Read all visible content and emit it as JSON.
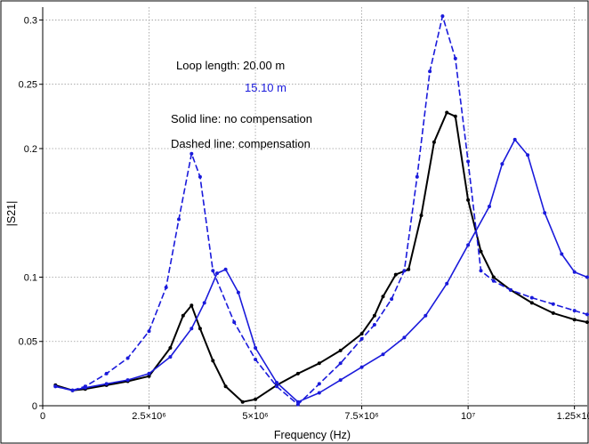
{
  "chart_data": {
    "type": "line",
    "xlabel": "Frequency (Hz)",
    "ylabel": "|S21|",
    "xlim": [
      0,
      12800000
    ],
    "ylim": [
      0,
      0.31
    ],
    "grid": true,
    "x_ticks": [
      {
        "value": 0,
        "label": "0"
      },
      {
        "value": 2500000,
        "label": "2.5×10⁶"
      },
      {
        "value": 5000000,
        "label": "5×10⁶"
      },
      {
        "value": 7500000,
        "label": "7.5×10⁶"
      },
      {
        "value": 10000000,
        "label": "10⁷"
      },
      {
        "value": 12500000,
        "label": "1.25×10"
      }
    ],
    "y_ticks": [
      {
        "value": 0,
        "label": "0"
      },
      {
        "value": 0.05,
        "label": "0.05"
      },
      {
        "value": 0.1,
        "label": "0.1"
      },
      {
        "value": 0.2,
        "label": "0.2"
      },
      {
        "value": 0.25,
        "label": "0.25"
      },
      {
        "value": 0.3,
        "label": "0.3"
      }
    ],
    "extra_gridlines_y": [
      0.15
    ],
    "annotations": [
      {
        "text": "Loop length: 20.00 m",
        "color": "#000000"
      },
      {
        "text": "15.10 m",
        "color": "#1a1adb"
      },
      {
        "text": "Solid line: no compensation",
        "color": "#000000"
      },
      {
        "text": "Dashed line: compensation",
        "color": "#000000"
      }
    ],
    "series": [
      {
        "color": "#000000",
        "dash": false,
        "points": [
          [
            300000,
            0.016
          ],
          [
            700000,
            0.012
          ],
          [
            1000000,
            0.013
          ],
          [
            1500000,
            0.016
          ],
          [
            2000000,
            0.019
          ],
          [
            2500000,
            0.023
          ],
          [
            3000000,
            0.045
          ],
          [
            3300000,
            0.07
          ],
          [
            3500000,
            0.078
          ],
          [
            3700000,
            0.06
          ],
          [
            4000000,
            0.035
          ],
          [
            4300000,
            0.015
          ],
          [
            4700000,
            0.003
          ],
          [
            5000000,
            0.005
          ],
          [
            5500000,
            0.016
          ],
          [
            6000000,
            0.025
          ],
          [
            6500000,
            0.033
          ],
          [
            7000000,
            0.043
          ],
          [
            7500000,
            0.056
          ],
          [
            7800000,
            0.07
          ],
          [
            8000000,
            0.085
          ],
          [
            8300000,
            0.102
          ],
          [
            8600000,
            0.106
          ],
          [
            8900000,
            0.148
          ],
          [
            9200000,
            0.205
          ],
          [
            9500000,
            0.228
          ],
          [
            9700000,
            0.225
          ],
          [
            10000000,
            0.16
          ],
          [
            10300000,
            0.12
          ],
          [
            10600000,
            0.1
          ],
          [
            11000000,
            0.09
          ],
          [
            11500000,
            0.08
          ],
          [
            12000000,
            0.072
          ],
          [
            12500000,
            0.067
          ],
          [
            12800000,
            0.065
          ]
        ]
      },
      {
        "color": "#1a1adb",
        "dash": true,
        "points": [
          [
            300000,
            0.015
          ],
          [
            700000,
            0.012
          ],
          [
            1000000,
            0.015
          ],
          [
            1500000,
            0.025
          ],
          [
            2000000,
            0.037
          ],
          [
            2500000,
            0.058
          ],
          [
            2900000,
            0.092
          ],
          [
            3200000,
            0.145
          ],
          [
            3500000,
            0.196
          ],
          [
            3700000,
            0.178
          ],
          [
            4000000,
            0.105
          ],
          [
            4500000,
            0.065
          ],
          [
            5000000,
            0.036
          ],
          [
            5500000,
            0.015
          ],
          [
            6000000,
            0.001
          ],
          [
            6500000,
            0.017
          ],
          [
            7000000,
            0.033
          ],
          [
            7500000,
            0.052
          ],
          [
            7800000,
            0.063
          ],
          [
            8200000,
            0.083
          ],
          [
            8500000,
            0.105
          ],
          [
            8800000,
            0.178
          ],
          [
            9100000,
            0.26
          ],
          [
            9400000,
            0.303
          ],
          [
            9700000,
            0.27
          ],
          [
            10000000,
            0.19
          ],
          [
            10300000,
            0.105
          ],
          [
            10600000,
            0.097
          ],
          [
            11000000,
            0.09
          ],
          [
            11500000,
            0.084
          ],
          [
            12000000,
            0.079
          ],
          [
            12500000,
            0.074
          ],
          [
            12800000,
            0.071
          ]
        ]
      },
      {
        "color": "#1a1adb",
        "dash": false,
        "points": [
          [
            300000,
            0.015
          ],
          [
            700000,
            0.012
          ],
          [
            1000000,
            0.014
          ],
          [
            1500000,
            0.017
          ],
          [
            2000000,
            0.02
          ],
          [
            2500000,
            0.025
          ],
          [
            3000000,
            0.038
          ],
          [
            3500000,
            0.06
          ],
          [
            3800000,
            0.08
          ],
          [
            4100000,
            0.103
          ],
          [
            4300000,
            0.106
          ],
          [
            4600000,
            0.088
          ],
          [
            5000000,
            0.045
          ],
          [
            5500000,
            0.018
          ],
          [
            6000000,
            0.003
          ],
          [
            6500000,
            0.01
          ],
          [
            7000000,
            0.02
          ],
          [
            7500000,
            0.03
          ],
          [
            8000000,
            0.04
          ],
          [
            8500000,
            0.053
          ],
          [
            9000000,
            0.07
          ],
          [
            9500000,
            0.095
          ],
          [
            10000000,
            0.125
          ],
          [
            10500000,
            0.155
          ],
          [
            10800000,
            0.188
          ],
          [
            11100000,
            0.207
          ],
          [
            11400000,
            0.195
          ],
          [
            11800000,
            0.15
          ],
          [
            12200000,
            0.118
          ],
          [
            12500000,
            0.104
          ],
          [
            12800000,
            0.1
          ]
        ]
      }
    ]
  }
}
